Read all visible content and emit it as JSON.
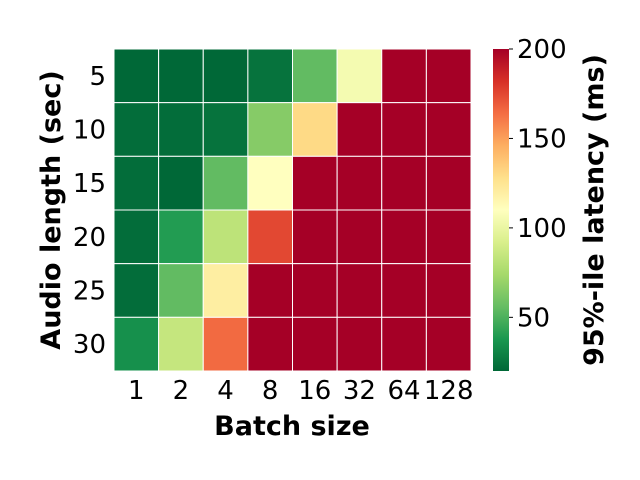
{
  "chart_data": {
    "type": "heatmap",
    "title": "",
    "xlabel": "Batch size",
    "ylabel": "Audio length (sec)",
    "x_categories": [
      "1",
      "2",
      "4",
      "8",
      "16",
      "32",
      "64",
      "128"
    ],
    "y_categories": [
      "5",
      "10",
      "15",
      "20",
      "25",
      "30"
    ],
    "values": [
      [
        20,
        20,
        20,
        24,
        55,
        105,
        200,
        200
      ],
      [
        22,
        22,
        24,
        65,
        130,
        200,
        200,
        200
      ],
      [
        22,
        20,
        55,
        110,
        200,
        200,
        200,
        200
      ],
      [
        22,
        40,
        82,
        175,
        200,
        200,
        200,
        200
      ],
      [
        22,
        55,
        120,
        200,
        200,
        200,
        200,
        200
      ],
      [
        35,
        85,
        165,
        200,
        200,
        200,
        200,
        200
      ]
    ],
    "colorbar": {
      "label": "95%-ile latency (ms)",
      "vmin": 20,
      "vmax": 200,
      "ticks": [
        50,
        100,
        150,
        200
      ],
      "colormap": "RdYlGn_r"
    }
  }
}
